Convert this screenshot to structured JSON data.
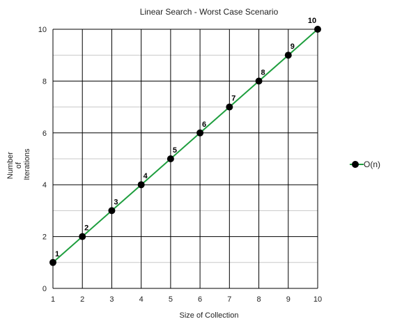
{
  "chart_data": {
    "type": "line",
    "title": "Linear Search - Worst Case Scenario",
    "xlabel": "Size of Collection",
    "ylabel_lines": [
      "Number",
      "of",
      "Iterations"
    ],
    "x": [
      1,
      2,
      3,
      4,
      5,
      6,
      7,
      8,
      9,
      10
    ],
    "xlim": [
      1,
      10
    ],
    "ylim": [
      0,
      10
    ],
    "x_ticks": [
      1,
      2,
      3,
      4,
      5,
      6,
      7,
      8,
      9,
      10
    ],
    "y_ticks": [
      0,
      2,
      4,
      6,
      8,
      10
    ],
    "y_minor_gridlines": [
      1,
      3,
      5,
      7,
      9
    ],
    "grid": true,
    "legend_position": "right",
    "series": [
      {
        "name": "O(n)",
        "values": [
          1,
          2,
          3,
          4,
          5,
          6,
          7,
          8,
          9,
          10
        ],
        "data_labels": [
          "1",
          "2",
          "3",
          "4",
          "5",
          "6",
          "7",
          "8",
          "9",
          "10"
        ],
        "line_color": "#1e9e3e",
        "marker_color": "#000000"
      }
    ]
  }
}
